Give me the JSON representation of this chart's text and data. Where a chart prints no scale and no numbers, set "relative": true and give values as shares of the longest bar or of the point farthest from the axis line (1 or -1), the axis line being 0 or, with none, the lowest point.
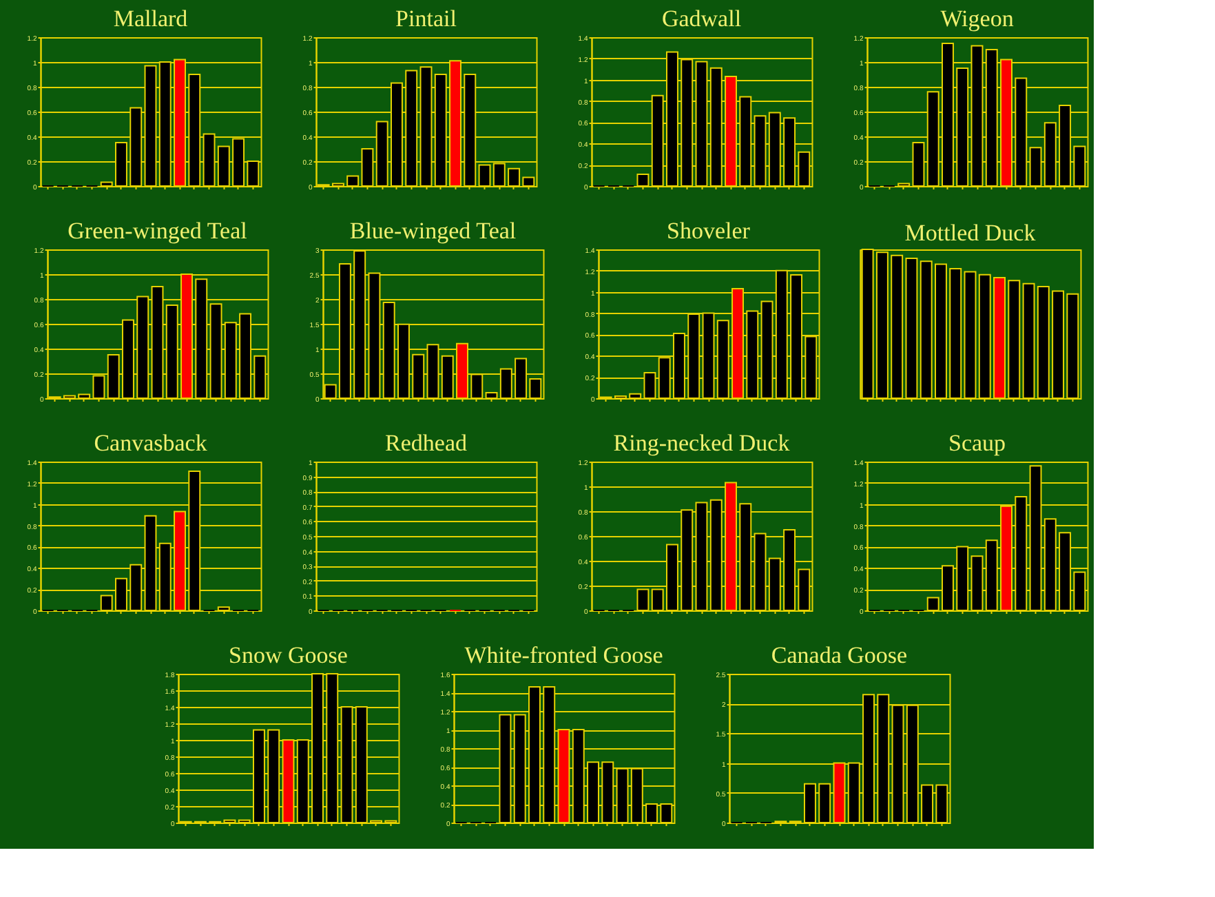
{
  "chart_data": [
    {
      "type": "bar",
      "title": "Mallard",
      "categories": [
        null,
        null,
        null,
        null,
        null,
        null,
        null,
        null,
        null,
        null,
        null,
        null,
        null,
        null,
        null
      ],
      "values": [
        0,
        0,
        0,
        0,
        0.03,
        0.35,
        0.63,
        0.97,
        1.0,
        1.02,
        0.9,
        0.42,
        0.32,
        0.38,
        0.2
      ],
      "colors": [
        "#000000",
        "#000000",
        "#000000",
        "#000000",
        "#000000",
        "#000000",
        "#000000",
        "#000000",
        "#000000",
        "#ff0000",
        "#000000",
        "#000000",
        "#000000",
        "#000000",
        "#000000"
      ],
      "ylim": [
        0,
        1.2
      ],
      "yticks": [
        0,
        0.2,
        0.4,
        0.6,
        0.8,
        1,
        1.2
      ],
      "grid": "y"
    },
    {
      "type": "bar",
      "title": "Pintail",
      "categories": [
        null,
        null,
        null,
        null,
        null,
        null,
        null,
        null,
        null,
        null,
        null,
        null,
        null,
        null,
        null
      ],
      "values": [
        0.01,
        0.02,
        0.08,
        0.3,
        0.52,
        0.83,
        0.93,
        0.96,
        0.9,
        1.01,
        0.9,
        0.17,
        0.18,
        0.14,
        0.07
      ],
      "colors": [
        "#000000",
        "#000000",
        "#000000",
        "#000000",
        "#000000",
        "#000000",
        "#000000",
        "#000000",
        "#000000",
        "#ff0000",
        "#000000",
        "#000000",
        "#000000",
        "#000000",
        "#000000"
      ],
      "ylim": [
        0,
        1.2
      ],
      "yticks": [
        0,
        0.2,
        0.4,
        0.6,
        0.8,
        1,
        1.2
      ],
      "grid": "y"
    },
    {
      "type": "bar",
      "title": "Gadwall",
      "categories": [
        null,
        null,
        null,
        null,
        null,
        null,
        null,
        null,
        null,
        null,
        null,
        null,
        null,
        null,
        null
      ],
      "values": [
        0,
        0,
        0,
        0.11,
        0.85,
        1.26,
        1.19,
        1.17,
        1.11,
        1.03,
        0.84,
        0.66,
        0.69,
        0.64,
        0.32
      ],
      "colors": [
        "#000000",
        "#000000",
        "#000000",
        "#000000",
        "#000000",
        "#000000",
        "#000000",
        "#000000",
        "#000000",
        "#ff0000",
        "#000000",
        "#000000",
        "#000000",
        "#000000",
        "#000000"
      ],
      "ylim": [
        0,
        1.4
      ],
      "yticks": [
        0,
        0.2,
        0.4,
        0.6,
        0.8,
        1,
        1.2,
        1.4
      ],
      "grid": "y"
    },
    {
      "type": "bar",
      "title": "Wigeon",
      "categories": [
        null,
        null,
        null,
        null,
        null,
        null,
        null,
        null,
        null,
        null,
        null,
        null,
        null,
        null,
        null
      ],
      "values": [
        0,
        0,
        0.02,
        0.35,
        0.76,
        1.15,
        0.95,
        1.13,
        1.1,
        1.02,
        0.87,
        0.31,
        0.51,
        0.65,
        0.32
      ],
      "colors": [
        "#000000",
        "#000000",
        "#000000",
        "#000000",
        "#000000",
        "#000000",
        "#000000",
        "#000000",
        "#000000",
        "#ff0000",
        "#000000",
        "#000000",
        "#000000",
        "#000000",
        "#000000"
      ],
      "ylim": [
        0,
        1.2
      ],
      "yticks": [
        0,
        0.2,
        0.4,
        0.6,
        0.8,
        1,
        1.2
      ],
      "grid": "y"
    },
    {
      "type": "bar",
      "title": "Green-winged Teal",
      "categories": [
        null,
        null,
        null,
        null,
        null,
        null,
        null,
        null,
        null,
        null,
        null,
        null,
        null,
        null,
        null
      ],
      "values": [
        0.01,
        0.02,
        0.03,
        0.18,
        0.35,
        0.63,
        0.82,
        0.9,
        0.75,
        1.0,
        0.96,
        0.76,
        0.61,
        0.68,
        0.34
      ],
      "colors": [
        "#000000",
        "#000000",
        "#000000",
        "#000000",
        "#000000",
        "#000000",
        "#000000",
        "#000000",
        "#000000",
        "#ff0000",
        "#000000",
        "#000000",
        "#000000",
        "#000000",
        "#000000"
      ],
      "ylim": [
        0,
        1.2
      ],
      "yticks": [
        0,
        0.2,
        0.4,
        0.6,
        0.8,
        1,
        1.2
      ],
      "grid": "y"
    },
    {
      "type": "bar",
      "title": "Blue-winged Teal",
      "categories": [
        null,
        null,
        null,
        null,
        null,
        null,
        null,
        null,
        null,
        null,
        null,
        null,
        null,
        null,
        null
      ],
      "values": [
        0.27,
        2.71,
        2.97,
        2.52,
        1.93,
        1.49,
        0.88,
        1.08,
        0.85,
        1.1,
        0.48,
        0.11,
        0.59,
        0.8,
        0.39
      ],
      "colors": [
        "#000000",
        "#000000",
        "#000000",
        "#000000",
        "#000000",
        "#000000",
        "#000000",
        "#000000",
        "#000000",
        "#ff0000",
        "#000000",
        "#000000",
        "#000000",
        "#000000",
        "#000000"
      ],
      "ylim": [
        0,
        3
      ],
      "yticks": [
        0,
        0.5,
        1,
        1.5,
        2,
        2.5,
        3
      ],
      "grid": "y"
    },
    {
      "type": "bar",
      "title": "Shoveler",
      "categories": [
        null,
        null,
        null,
        null,
        null,
        null,
        null,
        null,
        null,
        null,
        null,
        null,
        null,
        null,
        null
      ],
      "values": [
        0.01,
        0.02,
        0.04,
        0.24,
        0.38,
        0.61,
        0.79,
        0.8,
        0.73,
        1.03,
        0.82,
        0.91,
        1.2,
        1.16,
        0.58
      ],
      "colors": [
        "#000000",
        "#000000",
        "#000000",
        "#000000",
        "#000000",
        "#000000",
        "#000000",
        "#000000",
        "#000000",
        "#ff0000",
        "#000000",
        "#000000",
        "#000000",
        "#000000",
        "#000000"
      ],
      "ylim": [
        0,
        1.4
      ],
      "yticks": [
        0,
        0.2,
        0.4,
        0.6,
        0.8,
        1,
        1.2,
        1.4
      ],
      "grid": "y"
    },
    {
      "type": "bar",
      "title": "Mottled Duck",
      "relative": true,
      "categories": [
        null,
        null,
        null,
        null,
        null,
        null,
        null,
        null,
        null,
        null,
        null,
        null,
        null,
        null,
        null
      ],
      "values": [
        1,
        0.98,
        0.96,
        0.94,
        0.92,
        0.9,
        0.87,
        0.85,
        0.83,
        0.81,
        0.79,
        0.77,
        0.75,
        0.72,
        0.7
      ],
      "colors": [
        "#000000",
        "#000000",
        "#000000",
        "#000000",
        "#000000",
        "#000000",
        "#000000",
        "#000000",
        "#000000",
        "#ff0000",
        "#000000",
        "#000000",
        "#000000",
        "#000000",
        "#000000"
      ]
    },
    {
      "type": "bar",
      "title": "Canvasback",
      "categories": [
        null,
        null,
        null,
        null,
        null,
        null,
        null,
        null,
        null,
        null,
        null,
        null,
        null,
        null,
        null
      ],
      "values": [
        0,
        0,
        0,
        0,
        0.14,
        0.3,
        0.43,
        0.89,
        0.63,
        0.93,
        1.31,
        0,
        0.03,
        0,
        0
      ],
      "colors": [
        "#000000",
        "#000000",
        "#000000",
        "#000000",
        "#000000",
        "#000000",
        "#000000",
        "#000000",
        "#000000",
        "#ff0000",
        "#000000",
        "#000000",
        "#000000",
        "#000000",
        "#000000"
      ],
      "ylim": [
        0,
        1.4
      ],
      "yticks": [
        0,
        0.2,
        0.4,
        0.6,
        0.8,
        1,
        1.2,
        1.4
      ],
      "grid": "y"
    },
    {
      "type": "bar",
      "title": "Redhead",
      "categories": [
        null,
        null,
        null,
        null,
        null,
        null,
        null,
        null,
        null,
        null,
        null,
        null,
        null,
        null,
        null
      ],
      "values": [
        0,
        0,
        0,
        0,
        0,
        0,
        0,
        0,
        0,
        0,
        0,
        0,
        0,
        0,
        0
      ],
      "colors": [
        "#000000",
        "#000000",
        "#000000",
        "#000000",
        "#000000",
        "#000000",
        "#000000",
        "#000000",
        "#000000",
        "#ff0000",
        "#000000",
        "#000000",
        "#000000",
        "#000000",
        "#000000"
      ],
      "ylim": [
        0,
        1
      ],
      "yticks": [
        0,
        0.1,
        0.2,
        0.3,
        0.4,
        0.5,
        0.6,
        0.7,
        0.8,
        0.9,
        1
      ],
      "grid": "y"
    },
    {
      "type": "bar",
      "title": "Ring-necked Duck",
      "categories": [
        null,
        null,
        null,
        null,
        null,
        null,
        null,
        null,
        null,
        null,
        null,
        null,
        null,
        null,
        null
      ],
      "values": [
        0,
        0,
        0,
        0.17,
        0.17,
        0.53,
        0.81,
        0.87,
        0.89,
        1.03,
        0.86,
        0.62,
        0.42,
        0.65,
        0.33
      ],
      "colors": [
        "#000000",
        "#000000",
        "#000000",
        "#000000",
        "#000000",
        "#000000",
        "#000000",
        "#000000",
        "#000000",
        "#ff0000",
        "#000000",
        "#000000",
        "#000000",
        "#000000",
        "#000000"
      ],
      "ylim": [
        0,
        1.2
      ],
      "yticks": [
        0,
        0.2,
        0.4,
        0.6,
        0.8,
        1,
        1.2
      ],
      "grid": "y"
    },
    {
      "type": "bar",
      "title": "Scaup",
      "categories": [
        null,
        null,
        null,
        null,
        null,
        null,
        null,
        null,
        null,
        null,
        null,
        null,
        null,
        null,
        null
      ],
      "values": [
        0,
        0,
        0,
        0,
        0.12,
        0.42,
        0.6,
        0.51,
        0.66,
        0.98,
        1.07,
        1.36,
        0.86,
        0.73,
        0.36
      ],
      "colors": [
        "#000000",
        "#000000",
        "#000000",
        "#000000",
        "#000000",
        "#000000",
        "#000000",
        "#000000",
        "#000000",
        "#ff0000",
        "#000000",
        "#000000",
        "#000000",
        "#000000",
        "#000000"
      ],
      "ylim": [
        0,
        1.4
      ],
      "yticks": [
        0,
        0.2,
        0.4,
        0.6,
        0.8,
        1,
        1.2,
        1.4
      ],
      "grid": "y"
    },
    {
      "type": "bar",
      "title": "Snow Goose",
      "categories": [
        null,
        null,
        null,
        null,
        null,
        null,
        null,
        null,
        null,
        null,
        null,
        null,
        null,
        null,
        null
      ],
      "values": [
        0.01,
        0.01,
        0.01,
        0.03,
        0.03,
        1.12,
        1.12,
        1.0,
        1.0,
        1.8,
        1.8,
        1.4,
        1.4,
        0.02,
        0.02
      ],
      "colors": [
        "#000000",
        "#000000",
        "#000000",
        "#000000",
        "#000000",
        "#000000",
        "#000000",
        "#ff0000",
        "#000000",
        "#000000",
        "#000000",
        "#000000",
        "#000000",
        "#000000",
        "#000000"
      ],
      "ylim": [
        0,
        1.8
      ],
      "yticks": [
        0,
        0.2,
        0.4,
        0.6,
        0.8,
        1,
        1.2,
        1.4,
        1.6,
        1.8
      ],
      "grid": "y"
    },
    {
      "type": "bar",
      "title": "White-fronted Goose",
      "categories": [
        null,
        null,
        null,
        null,
        null,
        null,
        null,
        null,
        null,
        null,
        null,
        null,
        null,
        null,
        null
      ],
      "values": [
        0,
        0,
        0,
        1.16,
        1.16,
        1.46,
        1.46,
        1.0,
        1.0,
        0.65,
        0.65,
        0.58,
        0.58,
        0.2,
        0.2
      ],
      "colors": [
        "#000000",
        "#000000",
        "#000000",
        "#000000",
        "#000000",
        "#000000",
        "#000000",
        "#ff0000",
        "#000000",
        "#000000",
        "#000000",
        "#000000",
        "#000000",
        "#000000",
        "#000000"
      ],
      "ylim": [
        0,
        1.6
      ],
      "yticks": [
        0,
        0.2,
        0.4,
        0.6,
        0.8,
        1,
        1.2,
        1.4,
        1.6
      ],
      "grid": "y"
    },
    {
      "type": "bar",
      "title": "Canada Goose",
      "categories": [
        null,
        null,
        null,
        null,
        null,
        null,
        null,
        null,
        null,
        null,
        null,
        null,
        null,
        null,
        null
      ],
      "values": [
        0,
        0,
        0,
        0.02,
        0.02,
        0.65,
        0.65,
        1.0,
        1.0,
        2.15,
        2.15,
        1.97,
        1.97,
        0.63,
        0.63
      ],
      "colors": [
        "#000000",
        "#000000",
        "#000000",
        "#000000",
        "#000000",
        "#000000",
        "#000000",
        "#ff0000",
        "#000000",
        "#000000",
        "#000000",
        "#000000",
        "#000000",
        "#000000",
        "#000000"
      ],
      "ylim": [
        0,
        2.5
      ],
      "yticks": [
        0,
        0.5,
        1,
        1.5,
        2,
        2.5
      ],
      "grid": "y"
    }
  ]
}
